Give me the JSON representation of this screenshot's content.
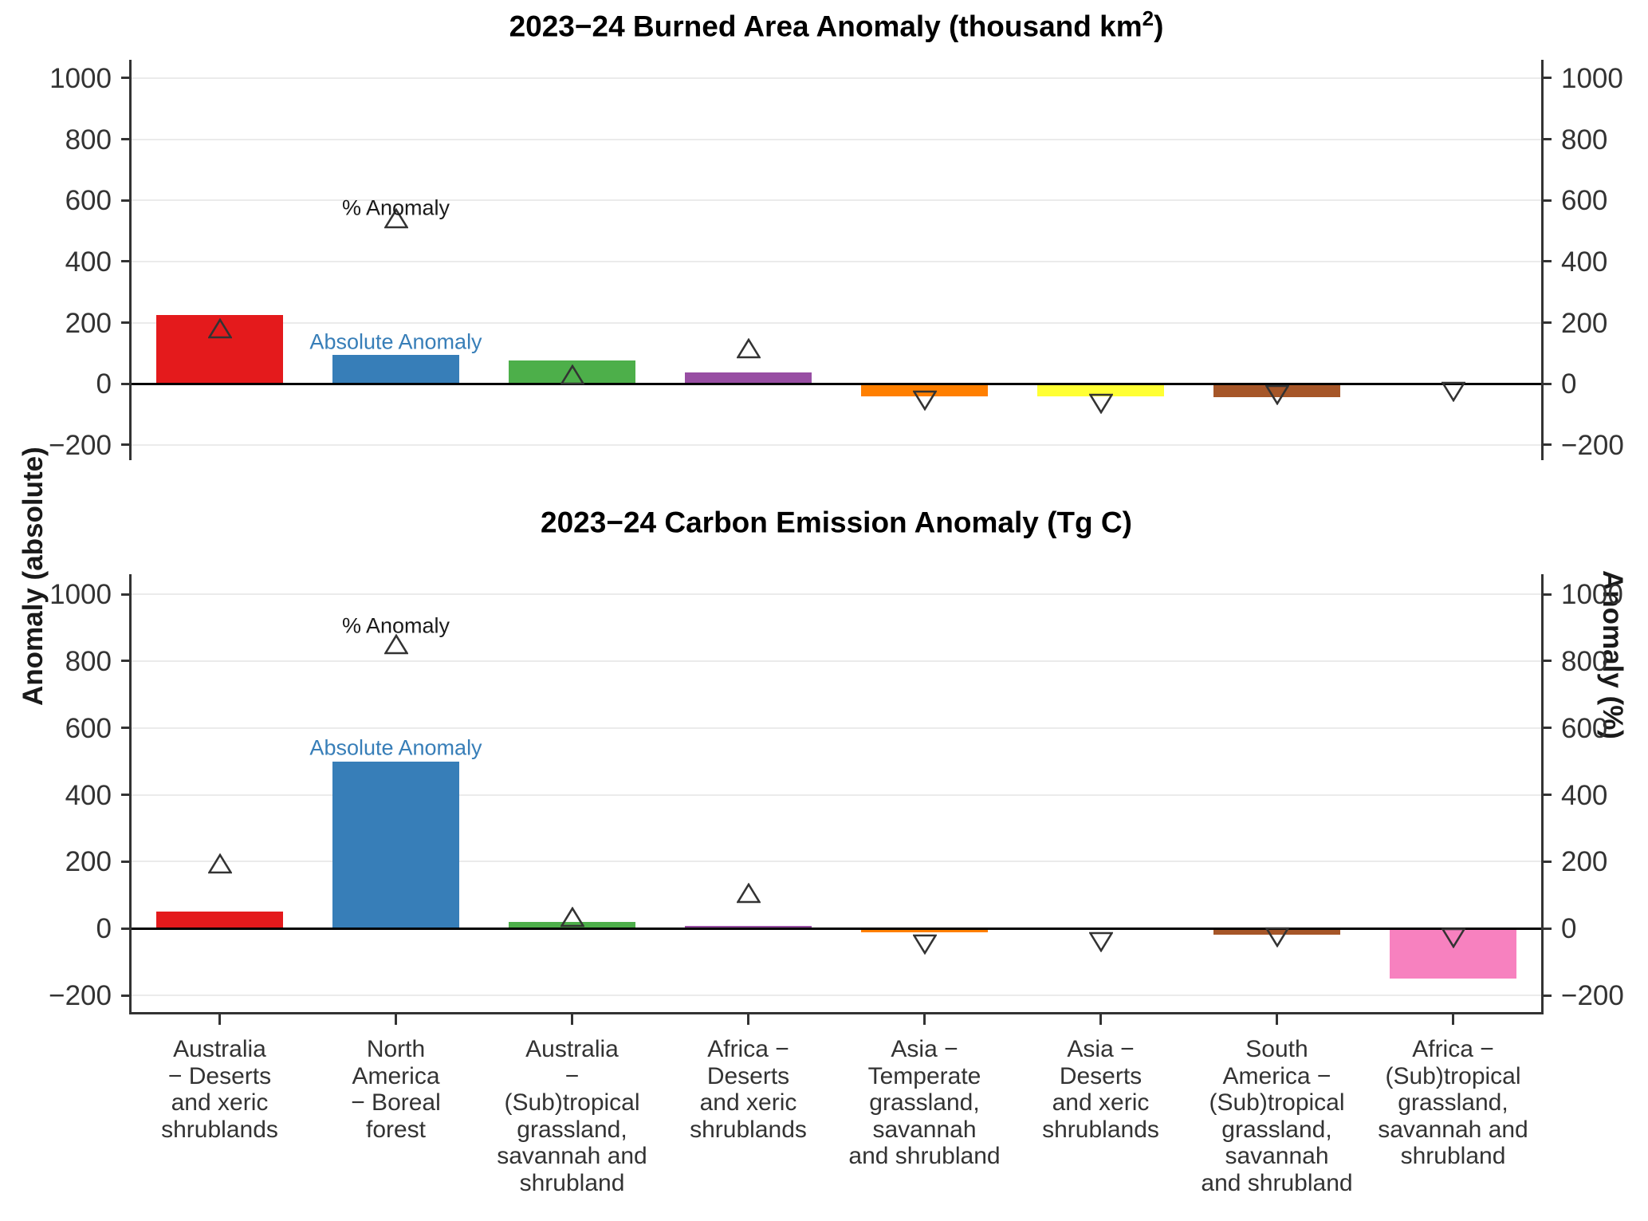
{
  "figure": {
    "left_axis_title": "Anomaly (absolute)",
    "right_axis_title": "Anomaly (%)"
  },
  "chart_data": [
    {
      "type": "bar",
      "title_parts": {
        "prefix": "2023−24 Burned Area Anomaly (thousand km",
        "sup": "2",
        "suffix": ")"
      },
      "title": "2023−24 Burned Area Anomaly (thousand km2)",
      "xlabel": "",
      "ylabel_left": "Anomaly (absolute)",
      "ylabel_right": "Anomaly (%)",
      "ylim": [
        -250,
        1060
      ],
      "yticks": [
        -200,
        0,
        200,
        400,
        600,
        800,
        1000
      ],
      "grid": true,
      "categories": [
        "Australia\n− Deserts\nand xeric\nshrublands",
        "North\nAmerica\n− Boreal\nforest",
        "Australia\n−\n(Sub)tropical\ngrassland,\nsavannah and\nshrubland",
        "Africa −\nDeserts\nand xeric\nshrublands",
        "Asia −\nTemperate\ngrassland,\nsavannah\nand shrubland",
        "Asia −\nDeserts\nand xeric\nshrublands",
        "South\nAmerica −\n(Sub)tropical\ngrassland,\nsavannah\nand shrubland",
        "Africa −\n(Sub)tropical\ngrassland,\nsavannah and\nshrubland"
      ],
      "bar_colors": [
        "#e41a1c",
        "#377eb8",
        "#4daf4a",
        "#984ea3",
        "#ff7f00",
        "#ffff33",
        "#a65628",
        "#f781bf"
      ],
      "series": [
        {
          "name": "Absolute Anomaly",
          "values": [
            225,
            95,
            75,
            38,
            -40,
            -40,
            -45,
            0
          ]
        },
        {
          "name": "% Anomaly",
          "values": [
            180,
            540,
            30,
            115,
            -55,
            -65,
            -35,
            -25
          ]
        }
      ],
      "annotations": [
        {
          "text": "% Anomaly",
          "color": "#1a1a1a",
          "cat_index": 1,
          "value": 575
        },
        {
          "text": "Absolute Anomaly",
          "color": "#377eb8",
          "cat_index": 1,
          "value": 135
        }
      ]
    },
    {
      "type": "bar",
      "title_parts": {
        "prefix": "2023−24 Carbon Emission Anomaly (Tg C)",
        "sup": "",
        "suffix": ""
      },
      "title": "2023−24 Carbon Emission Anomaly (Tg C)",
      "xlabel": "",
      "ylabel_left": "Anomaly (absolute)",
      "ylabel_right": "Anomaly (%)",
      "ylim": [
        -250,
        1060
      ],
      "yticks": [
        -200,
        0,
        200,
        400,
        600,
        800,
        1000
      ],
      "grid": true,
      "categories": [
        "Australia\n− Deserts\nand xeric\nshrublands",
        "North\nAmerica\n− Boreal\nforest",
        "Australia\n−\n(Sub)tropical\ngrassland,\nsavannah and\nshrubland",
        "Africa −\nDeserts\nand xeric\nshrublands",
        "Asia −\nTemperate\ngrassland,\nsavannah\nand shrubland",
        "Asia −\nDeserts\nand xeric\nshrublands",
        "South\nAmerica −\n(Sub)tropical\ngrassland,\nsavannah\nand shrubland",
        "Africa −\n(Sub)tropical\ngrassland,\nsavannah and\nshrubland"
      ],
      "bar_colors": [
        "#e41a1c",
        "#377eb8",
        "#4daf4a",
        "#984ea3",
        "#ff7f00",
        "#ffff33",
        "#a65628",
        "#f781bf"
      ],
      "series": [
        {
          "name": "Absolute Anomaly",
          "values": [
            50,
            500,
            20,
            8,
            -12,
            -2,
            -18,
            -150
          ]
        },
        {
          "name": "% Anomaly",
          "values": [
            195,
            850,
            35,
            105,
            -48,
            -40,
            -25,
            -28
          ]
        }
      ],
      "annotations": [
        {
          "text": "% Anomaly",
          "color": "#1a1a1a",
          "cat_index": 1,
          "value": 905
        },
        {
          "text": "Absolute Anomaly",
          "color": "#377eb8",
          "cat_index": 1,
          "value": 540
        }
      ]
    }
  ]
}
